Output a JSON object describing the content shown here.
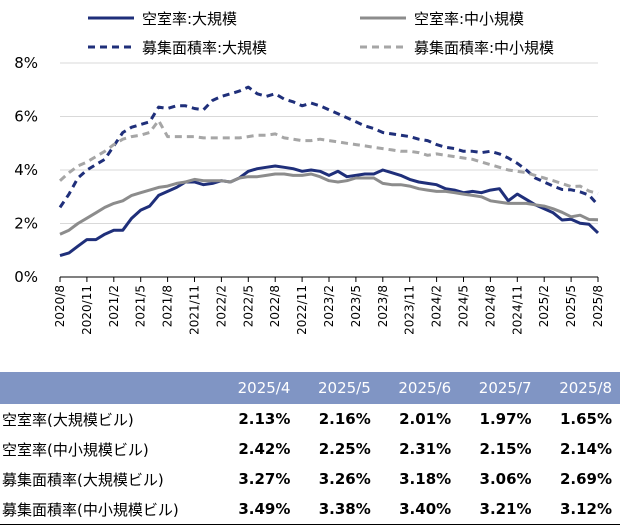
{
  "chart_data": {
    "type": "line",
    "x": [
      "2020/8",
      "2020/9",
      "2020/10",
      "2020/11",
      "2020/12",
      "2021/1",
      "2021/2",
      "2021/3",
      "2021/4",
      "2021/5",
      "2021/6",
      "2021/7",
      "2021/8",
      "2021/9",
      "2021/10",
      "2021/11",
      "2021/12",
      "2022/1",
      "2022/2",
      "2022/3",
      "2022/4",
      "2022/5",
      "2022/6",
      "2022/7",
      "2022/8",
      "2022/9",
      "2022/10",
      "2022/11",
      "2022/12",
      "2023/1",
      "2023/2",
      "2023/3",
      "2023/4",
      "2023/5",
      "2023/6",
      "2023/7",
      "2023/8",
      "2023/9",
      "2023/10",
      "2023/11",
      "2023/12",
      "2024/1",
      "2024/2",
      "2024/3",
      "2024/4",
      "2024/5",
      "2024/6",
      "2024/7",
      "2024/8",
      "2024/9",
      "2024/10",
      "2024/11",
      "2024/12",
      "2025/1",
      "2025/2",
      "2025/3",
      "2025/4",
      "2025/5",
      "2025/6",
      "2025/7",
      "2025/8"
    ],
    "x_tick_labels": [
      "2020/8",
      "2020/11",
      "2021/2",
      "2021/5",
      "2021/8",
      "2021/11",
      "2022/2",
      "2022/5",
      "2022/8",
      "2022/11",
      "2023/2",
      "2023/5",
      "2023/8",
      "2023/11",
      "2024/2",
      "2024/5",
      "2024/8",
      "2024/11",
      "2025/2",
      "2025/5",
      "2025/8"
    ],
    "y_ticks": [
      "0%",
      "2%",
      "4%",
      "6%",
      "8%"
    ],
    "ylim": [
      0,
      8
    ],
    "legend_position": "top",
    "series": [
      {
        "name": "空室率:大規模",
        "color": "#1f2f7a",
        "dash": "solid",
        "values": [
          0.8,
          0.9,
          1.15,
          1.4,
          1.4,
          1.6,
          1.75,
          1.75,
          2.2,
          2.5,
          2.65,
          3.05,
          3.2,
          3.35,
          3.55,
          3.55,
          3.45,
          3.5,
          3.6,
          3.55,
          3.7,
          3.95,
          4.05,
          4.1,
          4.15,
          4.1,
          4.05,
          3.95,
          4.0,
          3.95,
          3.8,
          3.95,
          3.75,
          3.8,
          3.85,
          3.85,
          4.0,
          3.9,
          3.8,
          3.65,
          3.55,
          3.5,
          3.45,
          3.3,
          3.25,
          3.15,
          3.2,
          3.15,
          3.25,
          3.3,
          2.85,
          3.1,
          2.9,
          2.7,
          2.55,
          2.4,
          2.13,
          2.16,
          2.01,
          1.97,
          1.65
        ]
      },
      {
        "name": "空室率:中小規模",
        "color": "#8c8c8c",
        "dash": "solid",
        "values": [
          1.6,
          1.75,
          2.0,
          2.2,
          2.4,
          2.6,
          2.75,
          2.85,
          3.05,
          3.15,
          3.25,
          3.35,
          3.4,
          3.5,
          3.55,
          3.65,
          3.6,
          3.6,
          3.6,
          3.55,
          3.7,
          3.75,
          3.75,
          3.8,
          3.85,
          3.85,
          3.8,
          3.8,
          3.85,
          3.75,
          3.6,
          3.55,
          3.6,
          3.7,
          3.7,
          3.7,
          3.5,
          3.45,
          3.45,
          3.4,
          3.3,
          3.25,
          3.2,
          3.2,
          3.15,
          3.1,
          3.05,
          3.0,
          2.85,
          2.8,
          2.75,
          2.75,
          2.75,
          2.7,
          2.65,
          2.55,
          2.42,
          2.25,
          2.31,
          2.15,
          2.14
        ]
      },
      {
        "name": "募集面積率:大規模",
        "color": "#1f2f7a",
        "dash": "dashed",
        "values": [
          2.6,
          3.1,
          3.7,
          4.0,
          4.2,
          4.4,
          4.9,
          5.4,
          5.6,
          5.7,
          5.8,
          6.35,
          6.3,
          6.4,
          6.4,
          6.3,
          6.25,
          6.6,
          6.75,
          6.85,
          6.95,
          7.1,
          6.85,
          6.75,
          6.85,
          6.65,
          6.55,
          6.4,
          6.5,
          6.4,
          6.25,
          6.1,
          5.95,
          5.8,
          5.65,
          5.55,
          5.4,
          5.35,
          5.3,
          5.25,
          5.15,
          5.1,
          4.95,
          4.85,
          4.8,
          4.7,
          4.7,
          4.65,
          4.7,
          4.6,
          4.45,
          4.25,
          4.0,
          3.7,
          3.55,
          3.4,
          3.27,
          3.26,
          3.18,
          3.06,
          2.69
        ]
      },
      {
        "name": "募集面積率:中小規模",
        "color": "#a6a6a6",
        "dash": "dashed",
        "values": [
          3.6,
          3.9,
          4.15,
          4.3,
          4.5,
          4.7,
          4.95,
          5.15,
          5.25,
          5.3,
          5.4,
          5.85,
          5.25,
          5.25,
          5.25,
          5.25,
          5.2,
          5.2,
          5.2,
          5.2,
          5.2,
          5.25,
          5.3,
          5.3,
          5.35,
          5.2,
          5.15,
          5.1,
          5.1,
          5.15,
          5.1,
          5.05,
          5.0,
          4.95,
          4.9,
          4.85,
          4.8,
          4.75,
          4.7,
          4.7,
          4.65,
          4.55,
          4.6,
          4.55,
          4.5,
          4.45,
          4.4,
          4.3,
          4.2,
          4.1,
          4.0,
          3.95,
          3.9,
          3.8,
          3.7,
          3.6,
          3.49,
          3.38,
          3.4,
          3.21,
          3.12
        ]
      }
    ]
  },
  "table": {
    "headers": [
      "2025/4",
      "2025/5",
      "2025/6",
      "2025/7",
      "2025/8"
    ],
    "rows": [
      {
        "label": "空室率(大規模ビル)",
        "values": [
          "2.13%",
          "2.16%",
          "2.01%",
          "1.97%",
          "1.65%"
        ]
      },
      {
        "label": "空室率(中小規模ビル)",
        "values": [
          "2.42%",
          "2.25%",
          "2.31%",
          "2.15%",
          "2.14%"
        ]
      },
      {
        "label": "募集面積率(大規模ビル)",
        "values": [
          "3.27%",
          "3.26%",
          "3.18%",
          "3.06%",
          "2.69%"
        ]
      },
      {
        "label": "募集面積率(中小規模ビル)",
        "values": [
          "3.49%",
          "3.38%",
          "3.40%",
          "3.21%",
          "3.12%"
        ]
      }
    ]
  }
}
